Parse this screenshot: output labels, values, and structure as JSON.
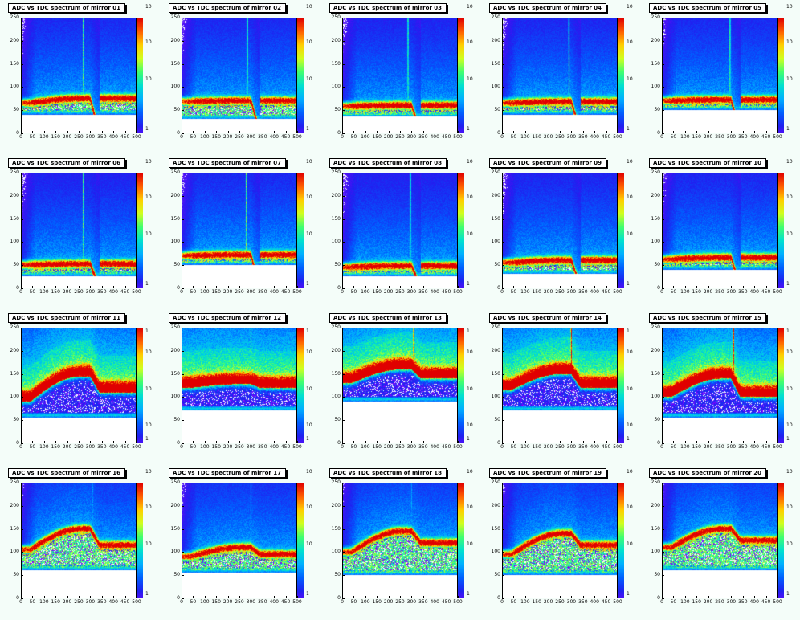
{
  "chart_data": {
    "type": "heatmap",
    "colors": {
      "background": "#f4fdf9",
      "palette": [
        "#ffffff",
        "#7a00ff",
        "#2020f0",
        "#0060ff",
        "#00b0ff",
        "#00e0d0",
        "#40ff70",
        "#d0ff20",
        "#ffd000",
        "#ff6000",
        "#e00000"
      ]
    },
    "xlim": [
      0,
      500
    ],
    "ylim": [
      0,
      250
    ],
    "x_ticks": [
      "0",
      "50",
      "100",
      "150",
      "200",
      "250",
      "300",
      "350",
      "400",
      "450",
      "500"
    ],
    "y_ticks": [
      "0",
      "50",
      "100",
      "150",
      "200",
      "250"
    ],
    "z_ticks_high": [
      "1",
      "10",
      "10",
      "10",
      "1"
    ],
    "z_ticks_low": [
      "1",
      "10",
      "10",
      "10"
    ],
    "panels": [
      {
        "title": "ADC vs TDC spectrum of mirror 01",
        "group": "low",
        "band": {
          "base": 65,
          "bump": 75,
          "fall": 0
        },
        "pedestal": 45,
        "spike": {
          "x": 270,
          "strength": "mid"
        }
      },
      {
        "title": "ADC vs TDC spectrum of mirror 02",
        "group": "low",
        "band": {
          "base": 68,
          "bump": 70,
          "fall": 0
        },
        "pedestal": 35,
        "spike": {
          "x": 285,
          "strength": "mid"
        }
      },
      {
        "title": "ADC vs TDC spectrum of mirror 03",
        "group": "low",
        "band": {
          "base": 58,
          "bump": 60,
          "fall": 0
        },
        "pedestal": 40,
        "spike": {
          "x": 285,
          "strength": "mid"
        }
      },
      {
        "title": "ADC vs TDC spectrum of mirror 04",
        "group": "low",
        "band": {
          "base": 65,
          "bump": 68,
          "fall": 0
        },
        "pedestal": 45,
        "spike": {
          "x": 290,
          "strength": "mid"
        }
      },
      {
        "title": "ADC vs TDC spectrum of mirror 05",
        "group": "low",
        "band": {
          "base": 70,
          "bump": 72,
          "fall": 0
        },
        "pedestal": 55,
        "spike": {
          "x": 295,
          "strength": "mid"
        }
      },
      {
        "title": "ADC vs TDC spectrum of mirror 06",
        "group": "low",
        "band": {
          "base": 50,
          "bump": 52,
          "fall": 0
        },
        "pedestal": 30,
        "spike": {
          "x": 270,
          "strength": "mid"
        }
      },
      {
        "title": "ADC vs TDC spectrum of mirror 07",
        "group": "low",
        "band": {
          "base": 70,
          "bump": 72,
          "fall": 0
        },
        "pedestal": 55,
        "spike": {
          "x": 280,
          "strength": "mid"
        }
      },
      {
        "title": "ADC vs TDC spectrum of mirror 08",
        "group": "low",
        "band": {
          "base": 45,
          "bump": 48,
          "fall": 0
        },
        "pedestal": 30,
        "spike": {
          "x": 295,
          "strength": "mid"
        }
      },
      {
        "title": "ADC vs TDC spectrum of mirror 09",
        "group": "low",
        "band": {
          "base": 55,
          "bump": 60,
          "fall": 0
        },
        "pedestal": 35,
        "spike": null
      },
      {
        "title": "ADC vs TDC spectrum of mirror 10",
        "group": "low",
        "band": {
          "base": 62,
          "bump": 66,
          "fall": 0
        },
        "pedestal": 45,
        "spike": null
      },
      {
        "title": "ADC vs TDC spectrum of mirror 11",
        "group": "high",
        "band": {
          "base": 100,
          "bump": 155,
          "fall": 120
        },
        "pedestal": 60,
        "spike": null
      },
      {
        "title": "ADC vs TDC spectrum of mirror 12",
        "group": "high",
        "band": {
          "base": 130,
          "bump": 138,
          "fall": 130
        },
        "pedestal": 75,
        "spike": {
          "x": 300,
          "strength": "mid"
        }
      },
      {
        "title": "ADC vs TDC spectrum of mirror 13",
        "group": "high",
        "band": {
          "base": 140,
          "bump": 170,
          "fall": 150
        },
        "pedestal": 95,
        "spike": {
          "x": 310,
          "strength": "strong"
        }
      },
      {
        "title": "ADC vs TDC spectrum of mirror 14",
        "group": "high",
        "band": {
          "base": 125,
          "bump": 160,
          "fall": 130
        },
        "pedestal": 75,
        "spike": {
          "x": 300,
          "strength": "strong"
        }
      },
      {
        "title": "ADC vs TDC spectrum of mirror 15",
        "group": "high",
        "band": {
          "base": 110,
          "bump": 150,
          "fall": 110
        },
        "pedestal": 60,
        "spike": {
          "x": 310,
          "strength": "strong"
        }
      },
      {
        "title": "ADC vs TDC spectrum of mirror 16",
        "group": "low",
        "band": {
          "base": 105,
          "bump": 150,
          "fall": 115
        },
        "pedestal": 65,
        "spike": {
          "x": 310,
          "strength": "weak"
        }
      },
      {
        "title": "ADC vs TDC spectrum of mirror 17",
        "group": "low",
        "band": {
          "base": 90,
          "bump": 110,
          "fall": 95
        },
        "pedestal": 60,
        "spike": {
          "x": 300,
          "strength": "weak"
        }
      },
      {
        "title": "ADC vs TDC spectrum of mirror 18",
        "group": "low",
        "band": {
          "base": 100,
          "bump": 145,
          "fall": 120
        },
        "pedestal": 55,
        "spike": {
          "x": 300,
          "strength": "weak"
        }
      },
      {
        "title": "ADC vs TDC spectrum of mirror 19",
        "group": "low",
        "band": {
          "base": 95,
          "bump": 140,
          "fall": 115
        },
        "pedestal": 55,
        "spike": null
      },
      {
        "title": "ADC vs TDC spectrum of mirror 20",
        "group": "low",
        "band": {
          "base": 110,
          "bump": 150,
          "fall": 125
        },
        "pedestal": 65,
        "spike": null
      }
    ]
  }
}
